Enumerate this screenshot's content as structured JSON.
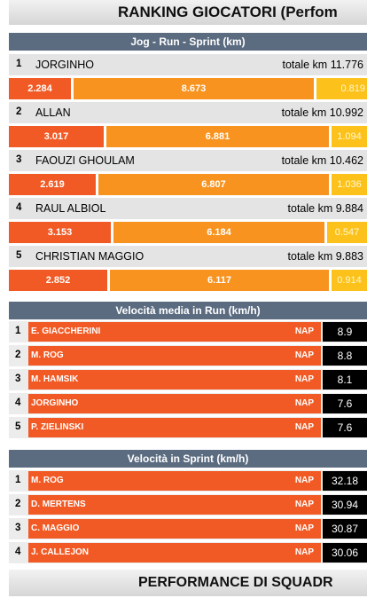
{
  "title": "RANKING GIOCATORI (Perfom",
  "jog_section": {
    "header": "Jog  -  Run  -  Sprint    (km)",
    "total_prefix": "totale km",
    "players": [
      {
        "rank": "1",
        "name": "JORGINHO",
        "total": "11.776",
        "jog": "2.284",
        "run": "8.673",
        "sprint": "0.819"
      },
      {
        "rank": "2",
        "name": "ALLAN",
        "total": "10.992",
        "jog": "3.017",
        "run": "6.881",
        "sprint": "1.094"
      },
      {
        "rank": "3",
        "name": "FAOUZI GHOULAM",
        "total": "10.462",
        "jog": "2.619",
        "run": "6.807",
        "sprint": "1.036"
      },
      {
        "rank": "4",
        "name": "RAUL ALBIOL",
        "total": "9.884",
        "jog": "3.153",
        "run": "6.184",
        "sprint": "0.547"
      },
      {
        "rank": "5",
        "name": "CHRISTIAN MAGGIO",
        "total": "9.883",
        "jog": "2.852",
        "run": "6.117",
        "sprint": "0.914"
      }
    ]
  },
  "run_speed": {
    "header": "Velocità media in Run    (km/h)",
    "rows": [
      {
        "rank": "1",
        "name": "E. GIACCHERINI",
        "team": "NAP",
        "value": "8.9"
      },
      {
        "rank": "2",
        "name": "M. ROG",
        "team": "NAP",
        "value": "8.8"
      },
      {
        "rank": "3",
        "name": "M. HAMSIK",
        "team": "NAP",
        "value": "8.1"
      },
      {
        "rank": "4",
        "name": "JORGINHO",
        "team": "NAP",
        "value": "7.6"
      },
      {
        "rank": "5",
        "name": "P. ZIELINSKI",
        "team": "NAP",
        "value": "7.6"
      }
    ]
  },
  "sprint_speed": {
    "header": "Velocità in Sprint (km/h)",
    "rows": [
      {
        "rank": "1",
        "name": "M. ROG",
        "team": "NAP",
        "value": "32.18"
      },
      {
        "rank": "2",
        "name": "D. MERTENS",
        "team": "NAP",
        "value": "30.94"
      },
      {
        "rank": "3",
        "name": "C. MAGGIO",
        "team": "NAP",
        "value": "30.87"
      },
      {
        "rank": "4",
        "name": "J. CALLEJON",
        "team": "NAP",
        "value": "30.06"
      }
    ]
  },
  "footer_title": "PERFORMANCE DI SQUADR",
  "colors": {
    "jog": "#f15a24",
    "run": "#f7931e",
    "sprint": "#fcc21b",
    "header": "#5b6b80"
  }
}
